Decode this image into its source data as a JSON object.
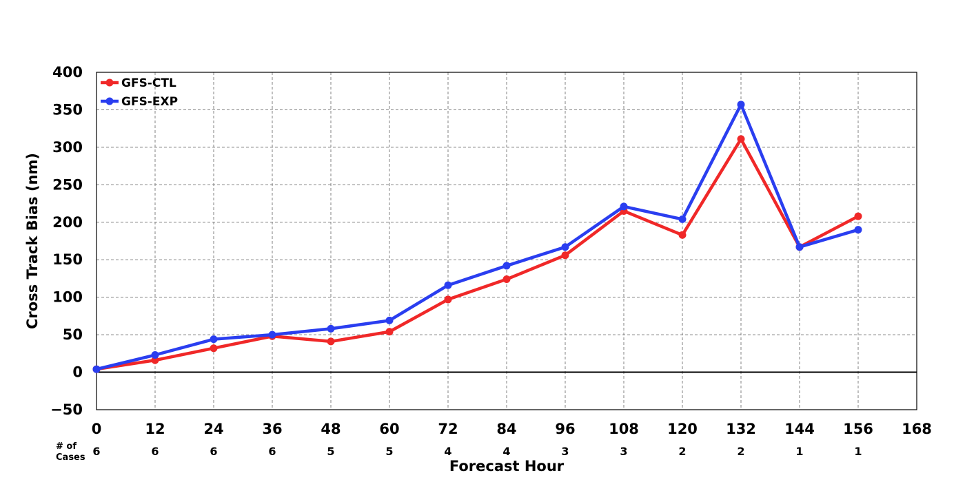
{
  "chart_data": {
    "type": "line",
    "xlabel": "Forecast Hour",
    "ylabel": "Cross Track Bias (nm)",
    "xlim": [
      0,
      168
    ],
    "ylim": [
      -50,
      400
    ],
    "x_ticks": [
      "0",
      "12",
      "24",
      "36",
      "48",
      "60",
      "72",
      "84",
      "96",
      "108",
      "120",
      "132",
      "144",
      "156",
      "168"
    ],
    "y_ticks": [
      "−50",
      "0",
      "50",
      "100",
      "150",
      "200",
      "250",
      "300",
      "350",
      "400"
    ],
    "grid": true,
    "legend_position": "top-left",
    "x": [
      0,
      12,
      24,
      36,
      48,
      60,
      72,
      84,
      96,
      108,
      120,
      132,
      144,
      156
    ],
    "series": [
      {
        "name": "GFS-CTL",
        "color": "#f02828",
        "values": [
          4,
          16,
          32,
          48,
          41,
          54,
          97,
          124,
          156,
          215,
          183,
          311,
          167,
          208
        ]
      },
      {
        "name": "GFS-EXP",
        "color": "#2a3ef0",
        "values": [
          4,
          23,
          44,
          50,
          58,
          69,
          116,
          142,
          167,
          221,
          204,
          357,
          167,
          190
        ]
      }
    ],
    "cases_label_line1": "# of",
    "cases_label_line2": "Cases",
    "cases": [
      "6",
      "6",
      "6",
      "6",
      "5",
      "5",
      "4",
      "4",
      "3",
      "3",
      "2",
      "2",
      "1",
      "1"
    ]
  }
}
